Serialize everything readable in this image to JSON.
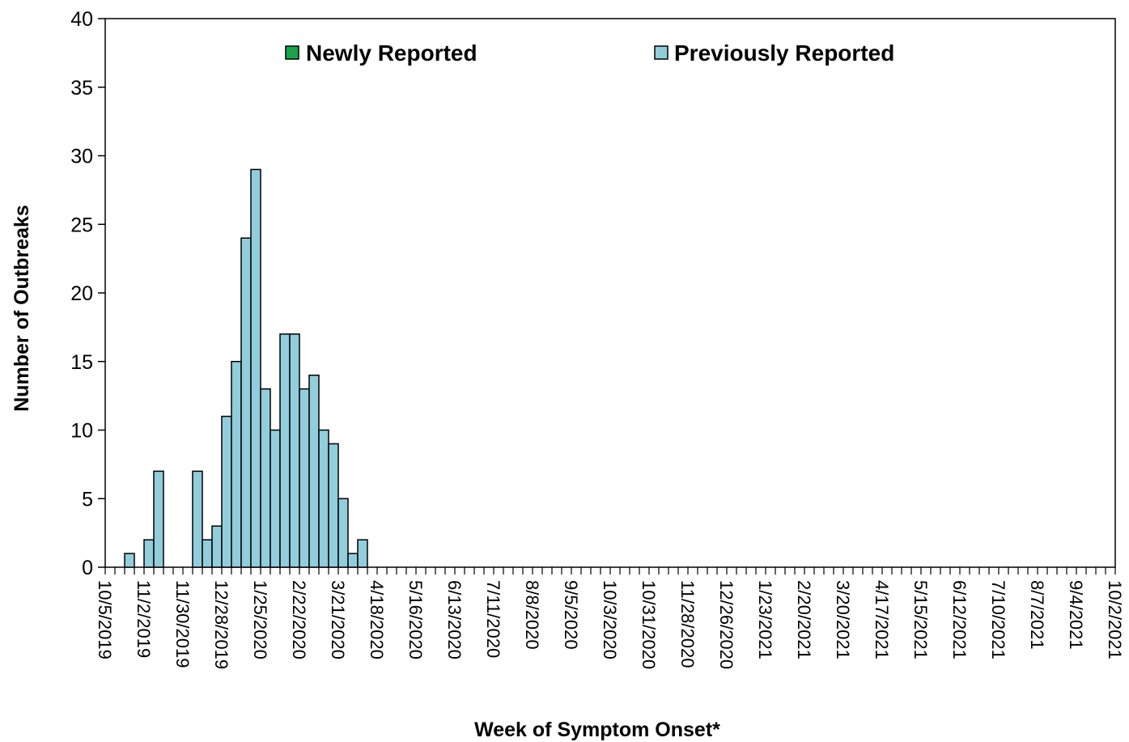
{
  "chart_data": {
    "type": "bar",
    "xlabel": "Week of Symptom Onset*",
    "ylabel": "Number of Outbreaks",
    "ylim": [
      0,
      40
    ],
    "yticks": [
      0,
      5,
      10,
      15,
      20,
      25,
      30,
      35,
      40
    ],
    "stacked": true,
    "bin_width_days": 7,
    "x_range": [
      "10/5/2019",
      "10/2/2021"
    ],
    "legend_position": "top",
    "grid": false,
    "x_tick_labels": [
      "10/5/2019",
      "11/2/2019",
      "11/30/2019",
      "12/28/2019",
      "1/25/2020",
      "2/22/2020",
      "3/21/2020",
      "4/18/2020",
      "5/16/2020",
      "6/13/2020",
      "7/11/2020",
      "8/8/2020",
      "9/5/2020",
      "10/3/2020",
      "10/31/2020",
      "11/28/2020",
      "12/26/2020",
      "1/23/2021",
      "2/20/2021",
      "3/20/2021",
      "4/17/2021",
      "5/15/2021",
      "6/12/2021",
      "7/10/2021",
      "8/7/2021",
      "9/4/2021",
      "10/2/2021"
    ],
    "series": [
      {
        "name": "Newly Reported",
        "color": "#1aa34a",
        "x": [],
        "values": []
      },
      {
        "name": "Previously Reported",
        "color": "#92cddc",
        "x": [
          "10/19/2019",
          "10/26/2019",
          "11/2/2019",
          "11/9/2019",
          "11/16/2019",
          "11/23/2019",
          "11/30/2019",
          "12/7/2019",
          "12/14/2019",
          "12/21/2019",
          "12/28/2019",
          "1/4/2020",
          "1/11/2020",
          "1/18/2020",
          "1/25/2020",
          "2/1/2020",
          "2/8/2020",
          "2/15/2020",
          "2/22/2020",
          "2/29/2020",
          "3/7/2020",
          "3/14/2020",
          "3/21/2020",
          "3/28/2020",
          "4/4/2020"
        ],
        "values": [
          1,
          0,
          2,
          7,
          0,
          0,
          0,
          7,
          2,
          3,
          11,
          15,
          24,
          29,
          13,
          10,
          17,
          17,
          13,
          14,
          10,
          9,
          5,
          1,
          2
        ]
      }
    ]
  }
}
